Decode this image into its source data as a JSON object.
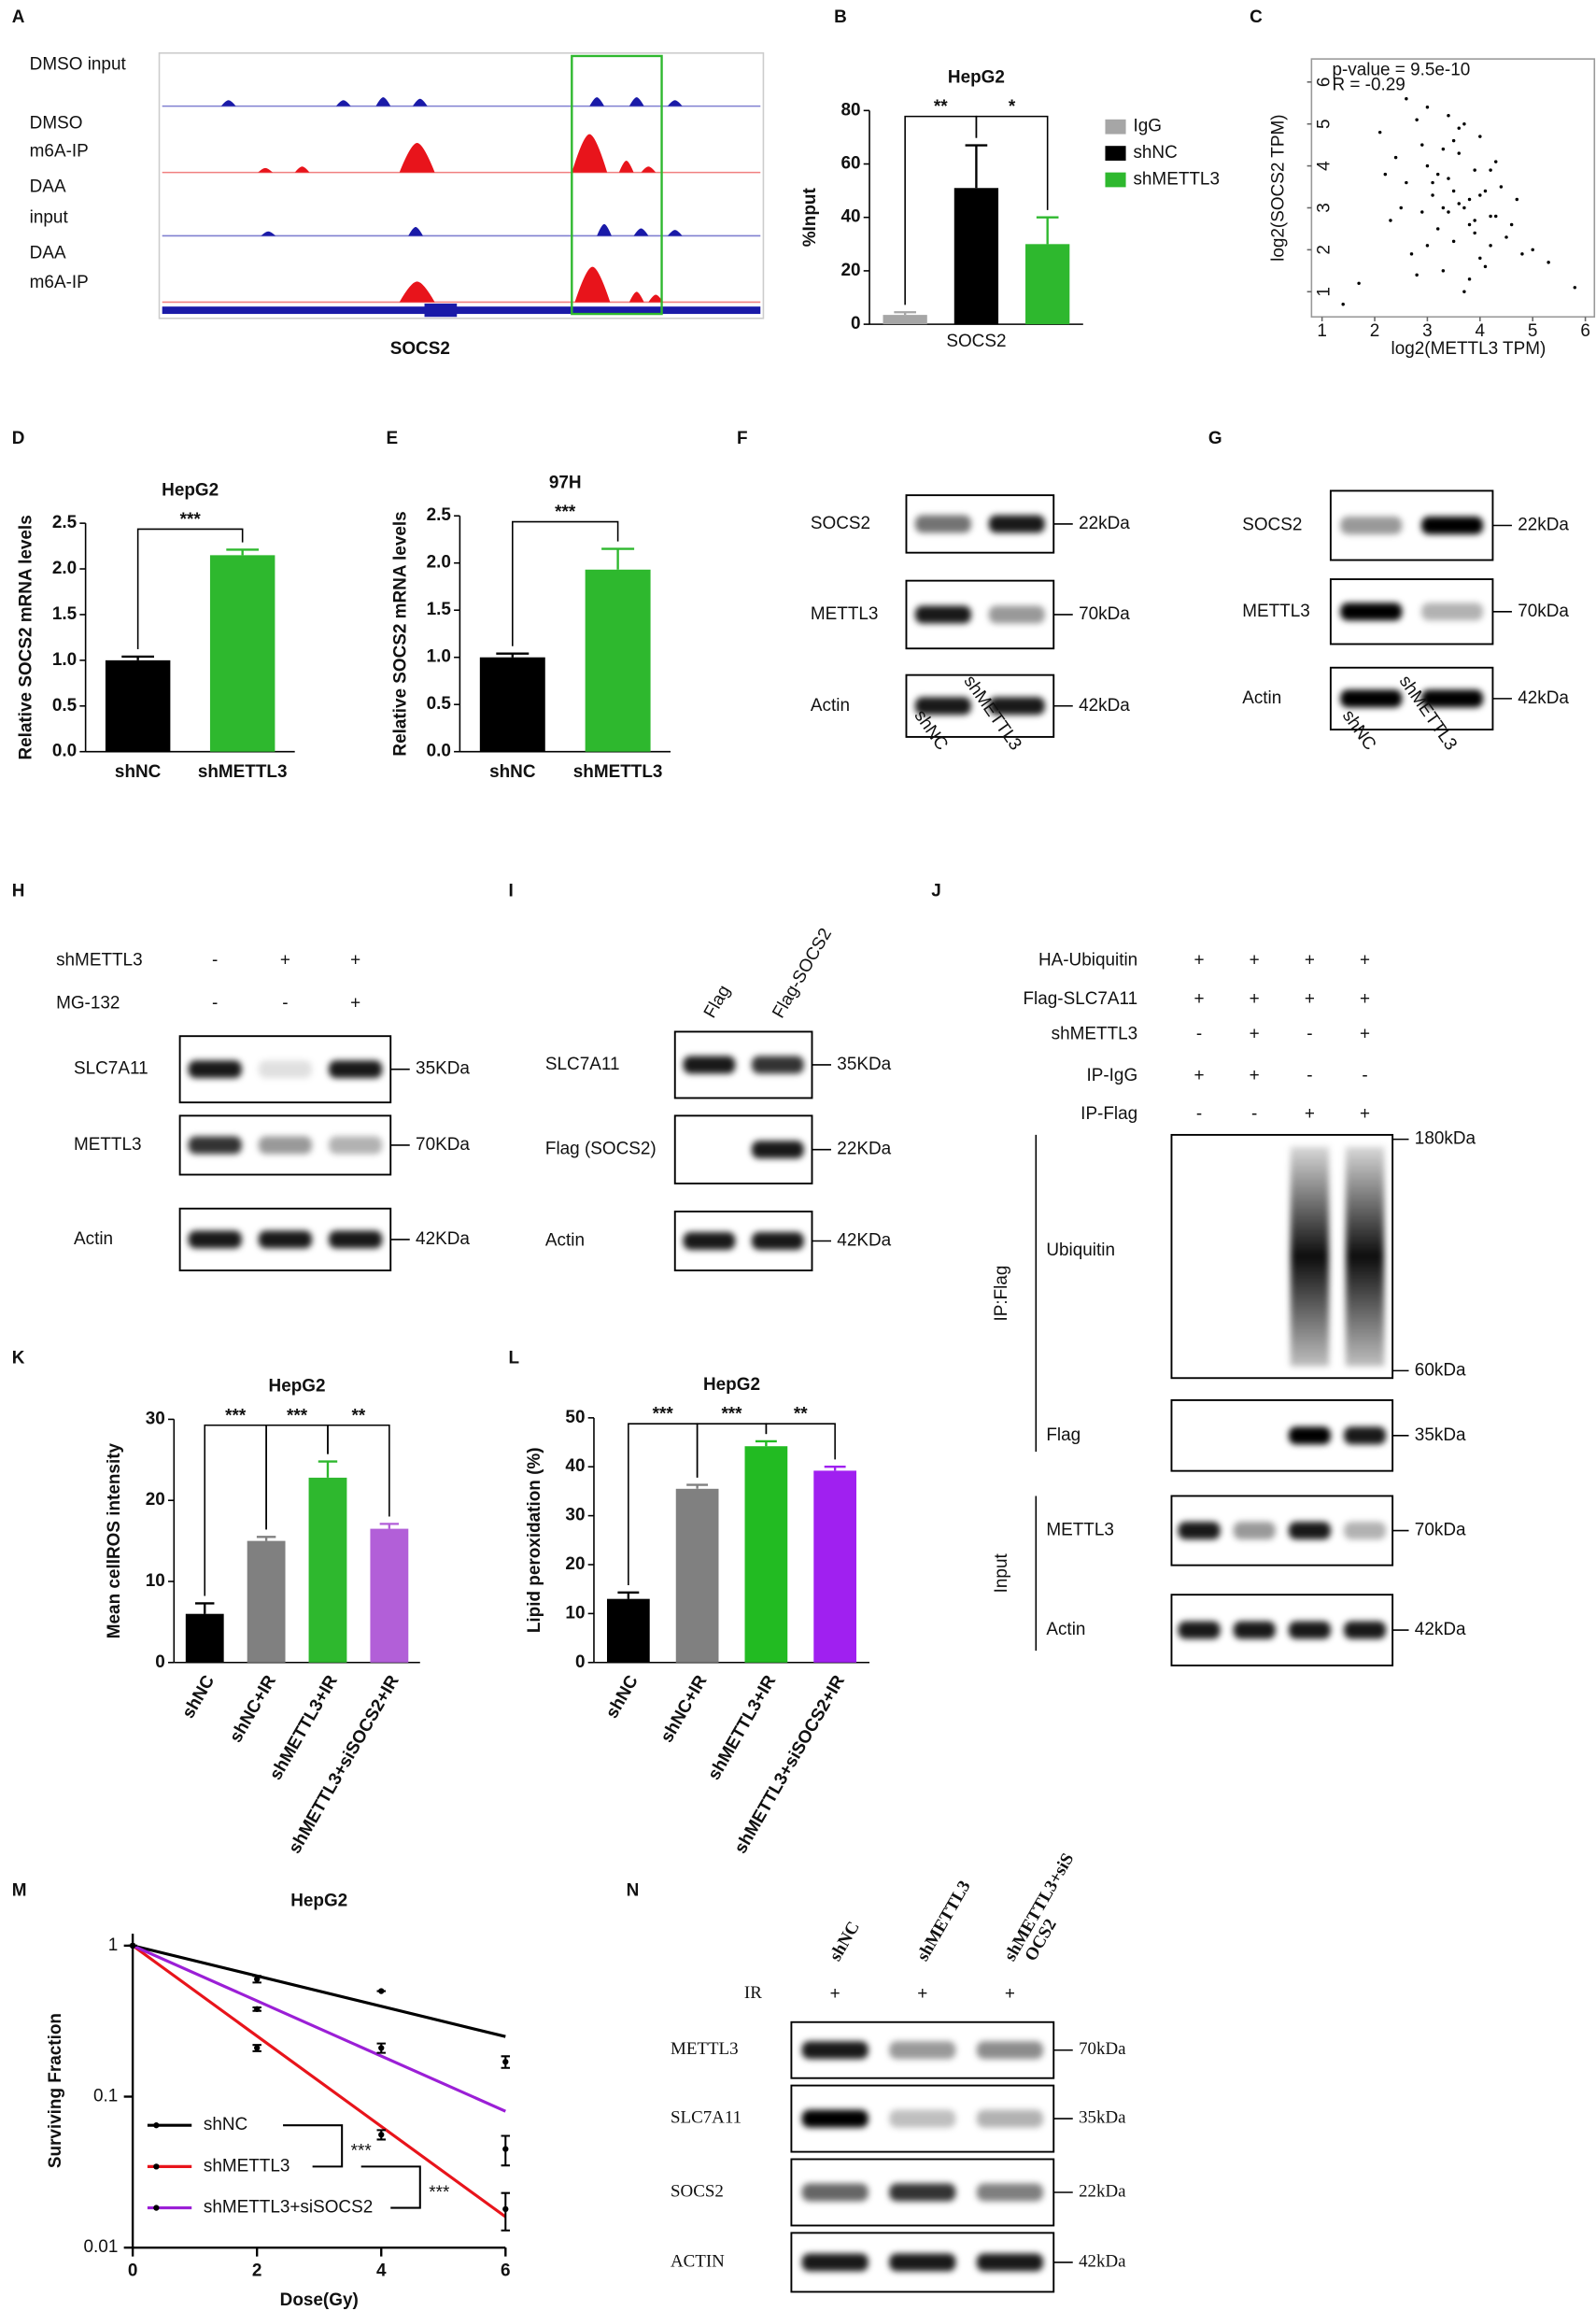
{
  "panel_labels": [
    "A",
    "B",
    "C",
    "D",
    "E",
    "F",
    "G",
    "H",
    "I",
    "J",
    "K",
    "L",
    "M",
    "N"
  ],
  "track_panel": {
    "tracks": [
      [
        "DMSO input"
      ],
      [
        "DMSO",
        "m6A-IP"
      ],
      [
        "DAA",
        "input"
      ],
      [
        "DAA",
        "m6A-IP"
      ]
    ],
    "gene": "SOCS2"
  },
  "chart_data": [
    {
      "type": "bar",
      "title": "HepG2",
      "y_label": "%Input",
      "categories": [
        "SOCS2"
      ],
      "series": [
        {
          "name": "IgG",
          "color": "#a6a6a6",
          "values": [
            3.5
          ],
          "errors": [
            1
          ]
        },
        {
          "name": "shNC",
          "color": "#000000",
          "values": [
            51
          ],
          "errors": [
            16
          ]
        },
        {
          "name": "shMETTL3",
          "color": "#2eb82e",
          "values": [
            30
          ],
          "errors": [
            10
          ]
        }
      ],
      "ylim": [
        0,
        80
      ],
      "yticks": [
        0,
        20,
        40,
        60,
        80
      ],
      "legend": "right",
      "significance": [
        {
          "label": "**",
          "between": [
            "IgG",
            "shNC"
          ]
        },
        {
          "label": "*",
          "between": [
            "shNC",
            "shMETTL3"
          ]
        }
      ]
    },
    {
      "type": "scatter",
      "x_label": "log2(METTL3 TPM)",
      "y_label": "log2(SOCS2 TPM)",
      "annotations": [
        "p-value = 9.5e-10",
        "R = -0.29"
      ],
      "x": [
        2.1,
        2.4,
        2.6,
        2.8,
        2.9,
        3.0,
        3.1,
        3.2,
        3.3,
        3.4,
        3.5,
        3.6,
        3.7,
        3.8,
        3.9,
        4.0,
        4.1,
        4.2,
        4.3,
        4.5,
        4.7,
        5.0,
        2.3,
        2.7,
        3.0,
        3.3,
        3.5,
        3.6,
        3.8,
        4.0,
        4.2,
        4.4,
        2.5,
        2.9,
        3.2,
        3.4,
        3.7,
        3.9,
        4.1,
        4.6,
        1.4,
        1.7,
        2.2,
        3.1,
        3.5,
        3.8,
        4.3,
        4.8,
        5.3,
        5.8,
        2.6,
        3.0,
        3.3,
        3.6,
        3.9,
        4.2,
        2.8,
        3.4,
        4.0,
        3.7
      ],
      "values": [
        4.8,
        4.2,
        3.6,
        5.1,
        2.9,
        4.0,
        3.3,
        2.5,
        4.4,
        3.7,
        2.2,
        4.9,
        3.0,
        2.6,
        3.9,
        1.8,
        3.4,
        2.8,
        4.1,
        2.3,
        3.2,
        2.0,
        2.7,
        1.9,
        5.4,
        1.5,
        4.6,
        3.1,
        1.3,
        4.7,
        2.1,
        3.5,
        3.0,
        4.5,
        3.8,
        2.9,
        5.0,
        2.4,
        1.6,
        2.6,
        0.7,
        1.2,
        3.8,
        3.6,
        3.4,
        3.2,
        2.8,
        1.9,
        1.7,
        1.1,
        5.6,
        2.1,
        3.0,
        4.3,
        2.7,
        3.9,
        1.4,
        5.2,
        3.3,
        1.0
      ],
      "color": "#000000",
      "xlim": [
        0.8,
        6.2
      ],
      "xticks": [
        1,
        2,
        3,
        4,
        5,
        6
      ],
      "ylim": [
        0.4,
        6.55
      ],
      "yticks": [
        1,
        2,
        3,
        4,
        5,
        6
      ]
    },
    {
      "type": "bar",
      "title": "HepG2",
      "y_label": "Relative SOCS2 mRNA levels",
      "categories": [
        "shNC",
        "shMETTL3"
      ],
      "values": [
        1.0,
        2.15
      ],
      "errors": [
        0.04,
        0.06
      ],
      "colors": [
        "#000000",
        "#2eb82e"
      ],
      "ylim": [
        0,
        2.5
      ],
      "yticks": [
        {
          "value": 0,
          "label": "0.0"
        },
        0.5,
        {
          "value": 1,
          "label": "1.0"
        },
        1.5,
        {
          "value": 2,
          "label": "2.0"
        },
        2.5
      ],
      "significance": [
        {
          "label": "***",
          "between": [
            "shNC",
            "shMETTL3"
          ]
        }
      ]
    },
    {
      "type": "bar",
      "title": "97H",
      "y_label": "Relative SOCS2 mRNA levels",
      "categories": [
        "shNC",
        "shMETTL3"
      ],
      "values": [
        1.0,
        1.93
      ],
      "errors": [
        0.04,
        0.22
      ],
      "colors": [
        "#000000",
        "#2eb82e"
      ],
      "ylim": [
        0,
        2.5
      ],
      "yticks": [
        {
          "value": 0,
          "label": "0.0"
        },
        0.5,
        {
          "value": 1,
          "label": "1.0"
        },
        1.5,
        {
          "value": 2,
          "label": "2.0"
        },
        2.5
      ],
      "significance": [
        {
          "label": "***",
          "between": [
            "shNC",
            "shMETTL3"
          ]
        }
      ]
    },
    {
      "type": "bar",
      "title": "HepG2",
      "y_label": "Mean cellROS intensity",
      "categories": [
        "shNC",
        "shNC+IR",
        "shMETTL3+IR",
        "shMETTL3+siSOCS2+IR"
      ],
      "values": [
        6,
        15,
        22.8,
        16.5
      ],
      "errors": [
        1.3,
        0.5,
        2,
        0.6
      ],
      "colors": [
        "#000000",
        "#808080",
        "#2eb82e",
        "#b25fd8"
      ],
      "ylim": [
        0,
        30
      ],
      "yticks": [
        0,
        10,
        20,
        30
      ],
      "significance": [
        {
          "label": "***",
          "between": [
            "shNC",
            "shNC+IR"
          ]
        },
        {
          "label": "***",
          "between": [
            "shNC+IR",
            "shMETTL3+IR"
          ]
        },
        {
          "label": "**",
          "between": [
            "shMETTL3+IR",
            "shMETTL3+siSOCS2+IR"
          ]
        }
      ]
    },
    {
      "type": "bar",
      "title": "HepG2",
      "y_label": "Lipid peroxidation (%)",
      "categories": [
        "shNC",
        "shNC+IR",
        "shMETTL3+IR",
        "shMETTL3+siSOCS2+IR"
      ],
      "values": [
        13,
        35.5,
        44.2,
        39.2
      ],
      "errors": [
        1.3,
        0.8,
        1,
        0.8
      ],
      "colors": [
        "#000000",
        "#808080",
        "#22bb22",
        "#a020f0"
      ],
      "ylim": [
        0,
        50
      ],
      "yticks": [
        0,
        10,
        20,
        30,
        40,
        50
      ],
      "significance": [
        {
          "label": "***",
          "between": [
            "shNC",
            "shNC+IR"
          ]
        },
        {
          "label": "***",
          "between": [
            "shNC+IR",
            "shMETTL3+IR"
          ]
        },
        {
          "label": "**",
          "between": [
            "shMETTL3+IR",
            "shMETTL3+siSOCS2+IR"
          ]
        }
      ]
    },
    {
      "type": "line",
      "title": "HepG2",
      "x_label": "Dose(Gy)",
      "y_label": "Surviving Fraction",
      "log_y": true,
      "x": [
        0,
        2,
        4,
        6
      ],
      "fit_x": [
        0,
        6
      ],
      "series": [
        {
          "name": "shNC",
          "color": "#000000",
          "values": [
            1,
            0.6,
            0.5,
            0.17
          ],
          "errors": [
            0,
            0.03,
            0,
            0.015
          ],
          "fit_values": [
            1,
            0.25
          ]
        },
        {
          "name": "shMETTL3",
          "color": "#e8141b",
          "values": [
            1,
            0.21,
            0.056,
            0.018
          ],
          "errors": [
            0,
            0.01,
            0.004,
            0.005
          ],
          "fit_values": [
            1,
            0.016
          ]
        },
        {
          "name": "shMETTL3+siSOCS2",
          "color": "#9b1fd6",
          "values": [
            1,
            0.38,
            0.21,
            0.045
          ],
          "errors": [
            0,
            0.01,
            0.015,
            0.01
          ],
          "fit_values": [
            1,
            0.08
          ]
        }
      ],
      "xlim": [
        0,
        6
      ],
      "xticks": [
        0,
        2,
        4,
        6
      ],
      "ylim": [
        0.01,
        1.2
      ],
      "yticks": [
        0.01,
        0.1,
        1
      ],
      "legend": "lower left",
      "significance": [
        {
          "label": "***",
          "between": [
            "shNC",
            "shMETTL3"
          ]
        },
        {
          "label": "***",
          "between": [
            "shMETTL3",
            "shMETTL3+siSOCS2"
          ]
        }
      ]
    }
  ],
  "blots": [
    {
      "lanes": [
        "shNC",
        "shMETTL3"
      ],
      "rows": [
        {
          "label": "SOCS2",
          "sizes": [
            "22kDa"
          ]
        },
        {
          "label": "METTL3",
          "sizes": [
            "70kDa"
          ]
        },
        {
          "label": "Actin",
          "sizes": [
            "42kDa"
          ]
        }
      ]
    },
    {
      "lanes": [
        "shNC",
        "shMETTL3"
      ],
      "rows": [
        {
          "label": "SOCS2",
          "sizes": [
            "22kDa"
          ]
        },
        {
          "label": "METTL3",
          "sizes": [
            "70kDa"
          ]
        },
        {
          "label": "Actin",
          "sizes": [
            "42kDa"
          ]
        }
      ]
    },
    {
      "conditions": [
        {
          "label": "shMETTL3",
          "signs": [
            "-",
            "+",
            "+"
          ]
        },
        {
          "label": "MG-132",
          "signs": [
            "-",
            "-",
            "+"
          ]
        }
      ],
      "rows": [
        {
          "label": "SLC7A11",
          "sizes": [
            "35KDa"
          ]
        },
        {
          "label": "METTL3",
          "sizes": [
            "70KDa"
          ]
        },
        {
          "label": "Actin",
          "sizes": [
            "42KDa"
          ]
        }
      ]
    },
    {
      "lanes": [
        "Flag",
        "Flag-SOCS2"
      ],
      "rows": [
        {
          "label": "SLC7A11",
          "sizes": [
            "35KDa"
          ]
        },
        {
          "label": "Flag (SOCS2)",
          "sizes": [
            "22KDa"
          ]
        },
        {
          "label": "Actin",
          "sizes": [
            "42KDa"
          ]
        }
      ]
    },
    {
      "conditions": [
        {
          "label": "HA-Ubiquitin",
          "signs": [
            "+",
            "+",
            "+",
            "+"
          ]
        },
        {
          "label": "Flag-SLC7A11",
          "signs": [
            "+",
            "+",
            "+",
            "+"
          ]
        },
        {
          "label": "shMETTL3",
          "signs": [
            "-",
            "+",
            "-",
            "+"
          ]
        },
        {
          "label": "IP-IgG",
          "signs": [
            "+",
            "+",
            "-",
            "-"
          ]
        },
        {
          "label": "IP-Flag",
          "signs": [
            "-",
            "-",
            "+",
            "+"
          ]
        }
      ],
      "rows": [
        {
          "label": "Ubiquitin",
          "sizes": [
            "180kDa",
            "60kDa"
          ]
        },
        {
          "label": "Flag",
          "sizes": [
            "35kDa"
          ]
        },
        {
          "label": "METTL3",
          "sizes": [
            "70kDa"
          ]
        },
        {
          "label": "Actin",
          "sizes": [
            "42kDa"
          ]
        }
      ],
      "groups": [
        "IP:Flag",
        "Input"
      ]
    },
    {
      "lanes": [
        [
          "shNC"
        ],
        [
          "shMETTL3"
        ],
        [
          "shMETTL3+siS",
          "OCS2"
        ]
      ],
      "conditions": [
        {
          "label": "IR",
          "signs": [
            "+",
            "+",
            "+"
          ]
        }
      ],
      "rows": [
        {
          "label": "METTL3",
          "sizes": [
            "70kDa"
          ]
        },
        {
          "label": "SLC7A11",
          "sizes": [
            "35kDa"
          ]
        },
        {
          "label": "SOCS2",
          "sizes": [
            "22kDa"
          ]
        },
        {
          "label": "ACTIN",
          "sizes": [
            "42kDa"
          ]
        }
      ]
    }
  ]
}
